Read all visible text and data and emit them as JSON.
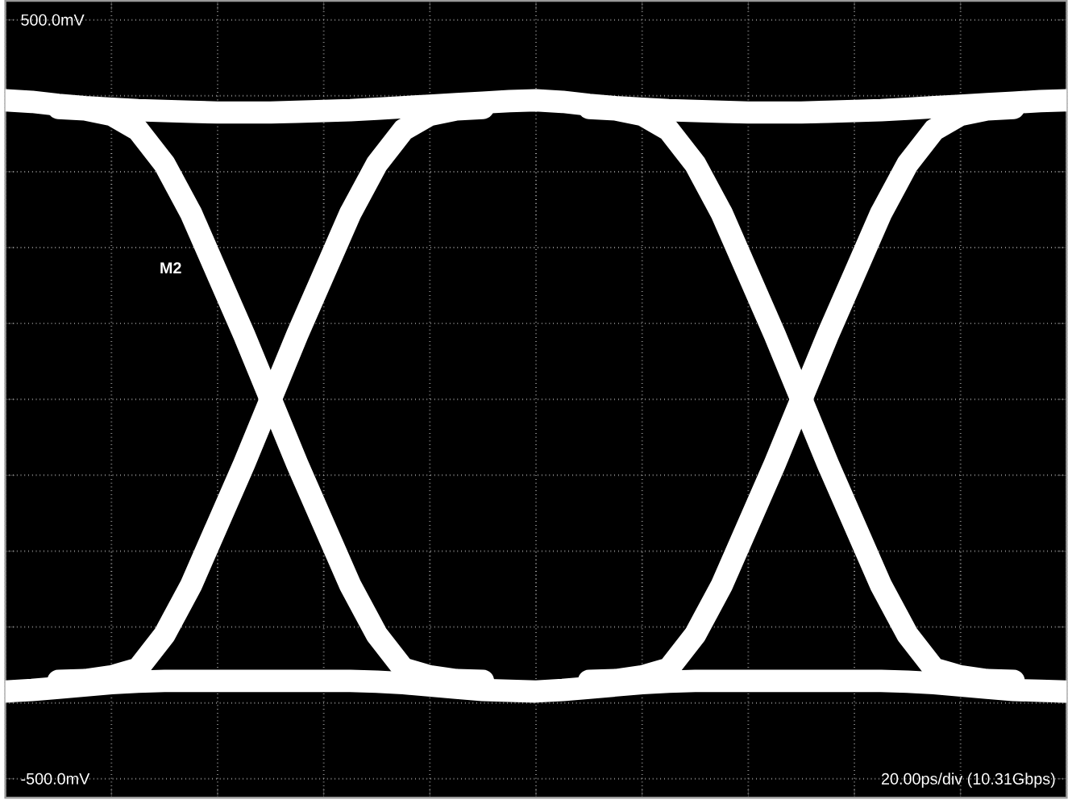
{
  "chart_data": {
    "type": "line",
    "categories": [
      null,
      null,
      null,
      null,
      null,
      null,
      null,
      null,
      null,
      null,
      null,
      null,
      null,
      null,
      null,
      null,
      null,
      null,
      null,
      null,
      null,
      null,
      null,
      null,
      null,
      null,
      null,
      null,
      null,
      null,
      null,
      null,
      null,
      null,
      null,
      null,
      null,
      null,
      null,
      null,
      null
    ],
    "ylim": [
      -525,
      525
    ],
    "yticks": [
      {
        "value": -500,
        "label": "-500.0mV"
      },
      {
        "value": -400,
        "label": null
      },
      {
        "value": -300,
        "label": null
      },
      {
        "value": -200,
        "label": null
      },
      {
        "value": -100,
        "label": null
      },
      {
        "value": 0,
        "label": null
      },
      {
        "value": 100,
        "label": null
      },
      {
        "value": 200,
        "label": null
      },
      {
        "value": 300,
        "label": null
      },
      {
        "value": 400,
        "label": null
      },
      {
        "value": 500,
        "label": "500.0mV"
      }
    ],
    "tick_labels": "y",
    "grid": true,
    "marker": "none",
    "line_style": "solid",
    "annotations": [
      "M2",
      "20.00ps/div (10.31Gbps)"
    ],
    "series": [
      {
        "color": "#ffffff",
        "values": [
          394,
          392,
          388,
          385,
          383,
          381,
          380,
          379,
          378,
          378,
          378,
          379,
          380,
          381,
          383,
          385,
          387,
          389,
          391,
          393,
          394,
          392,
          388,
          385,
          383,
          381,
          380,
          379,
          378,
          378,
          378,
          379,
          380,
          381,
          383,
          385,
          387,
          389,
          391,
          393,
          394
        ]
      },
      {
        "color": "#ffffff",
        "values": [
          -385,
          -383,
          -380,
          -377,
          -374,
          -372,
          -371,
          -371,
          -371,
          -371,
          -371,
          -371,
          -371,
          -371,
          -372,
          -374,
          -377,
          -380,
          -383,
          -384,
          -385,
          -383,
          -380,
          -377,
          -374,
          -372,
          -371,
          -371,
          -371,
          -371,
          -371,
          -371,
          -371,
          -371,
          -372,
          -374,
          -377,
          -380,
          -383,
          -384,
          -385
        ]
      },
      {
        "color": "#ffffff",
        "values": [
          null,
          null,
          384,
          382,
          375,
          355,
          310,
          245,
          165,
          85,
          0,
          -85,
          -165,
          -245,
          -310,
          -355,
          -365,
          -370,
          -371,
          null,
          null,
          null,
          null,
          null,
          null,
          null,
          null,
          null,
          null,
          null,
          null,
          null,
          null,
          null,
          null,
          null,
          null,
          null,
          null,
          null,
          null
        ]
      },
      {
        "color": "#ffffff",
        "values": [
          null,
          null,
          -371,
          -370,
          -365,
          -355,
          -310,
          -245,
          -165,
          -85,
          0,
          85,
          165,
          245,
          310,
          355,
          375,
          382,
          384,
          null,
          null,
          null,
          null,
          null,
          null,
          null,
          null,
          null,
          null,
          null,
          null,
          null,
          null,
          null,
          null,
          null,
          null,
          null,
          null,
          null,
          null
        ]
      },
      {
        "color": "#ffffff",
        "values": [
          null,
          null,
          null,
          null,
          null,
          null,
          null,
          null,
          null,
          null,
          null,
          null,
          null,
          null,
          null,
          null,
          null,
          null,
          null,
          null,
          null,
          null,
          384,
          382,
          375,
          355,
          310,
          245,
          165,
          85,
          0,
          -85,
          -165,
          -245,
          -310,
          -355,
          -365,
          -370,
          -371,
          null,
          null
        ]
      },
      {
        "color": "#ffffff",
        "values": [
          null,
          null,
          null,
          null,
          null,
          null,
          null,
          null,
          null,
          null,
          null,
          null,
          null,
          null,
          null,
          null,
          null,
          null,
          null,
          null,
          null,
          null,
          -371,
          -370,
          -365,
          -355,
          -310,
          -245,
          -165,
          -85,
          0,
          85,
          165,
          245,
          310,
          355,
          375,
          382,
          384,
          null,
          null
        ]
      }
    ]
  }
}
